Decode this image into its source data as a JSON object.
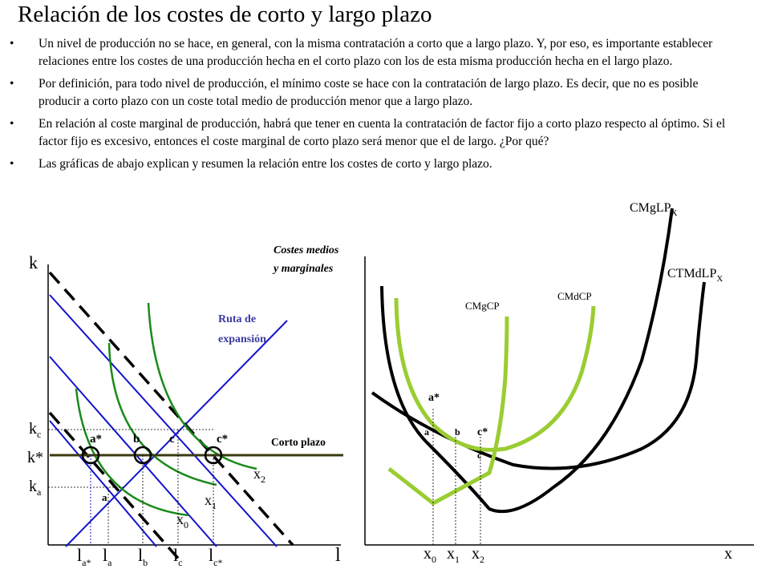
{
  "slide": {
    "title": "Relación de los costes de corto y largo plazo",
    "bullets": [
      "Un nivel de producción no se hace, en general, con la misma contratación a corto que a largo plazo. Y, por eso, es importante establecer relaciones entre los costes de una producción hecha en el corto plazo con los de esta misma producción hecha en el largo plazo.",
      "Por definición, para todo nivel de producción, el mínimo coste se hace con la contratación de largo plazo. Es decir, que no es posible producir a corto plazo con un coste total medio de producción menor que a largo plazo.",
      "En relación al coste marginal de producción, habrá que tener en cuenta la contratación de factor fijo a corto plazo respecto al óptimo. Si el factor fijo es excesivo, entonces el coste marginal de corto plazo será menor que el de largo. ¿Por qué?",
      "Las gráficas de abajo explican y resumen la relación entre los costes de corto y largo plazo."
    ]
  },
  "left_graph": {
    "y_axis_label": "k",
    "x_axis_label": "l",
    "ruta_label": [
      "Ruta de",
      "expansión"
    ],
    "corto_label": "Corto plazo",
    "k_ticks": {
      "kc": "k",
      "kc_sub": "c",
      "kstar": "k*",
      "ka": "k",
      "ka_sub": "a"
    },
    "l_ticks": [
      {
        "base": "l",
        "sub": "a*"
      },
      {
        "base": "l",
        "sub": "a"
      },
      {
        "base": "l",
        "sub": "b"
      },
      {
        "base": "l",
        "sub": "c"
      },
      {
        "base": "l",
        "sub": "c*"
      }
    ],
    "points": {
      "a_star": "a*",
      "b": "b",
      "c": "c",
      "c_star": "c*",
      "a": "a"
    },
    "isoquants": [
      {
        "base": "x",
        "sub": "2"
      },
      {
        "base": "x",
        "sub": "1"
      },
      {
        "base": "x",
        "sub": "0"
      }
    ]
  },
  "right_graph": {
    "y_axis_label": [
      "Costes medios",
      "y marginales"
    ],
    "x_axis_label": "x",
    "curves": {
      "cmg_lp": {
        "base": "CMgLP",
        "sub": "X"
      },
      "ctmd_lp": {
        "base": "CTMdLP",
        "sub": "X"
      },
      "cmd_cp": "CMdCP",
      "cmg_cp": "CMgCP"
    },
    "points": {
      "a_star": "a*",
      "a": "a",
      "b": "b",
      "c_star": "c*",
      "c": "c"
    },
    "x_ticks": [
      {
        "base": "x",
        "sub": "0"
      },
      {
        "base": "x",
        "sub": "1"
      },
      {
        "base": "x",
        "sub": "2"
      }
    ]
  },
  "colors": {
    "isocost_blue": "#1414cc",
    "isocost_dashed": "#000000",
    "isoquant_green": "#1a8a1a",
    "corto_plazo_line": "#3a3a10",
    "ruta_label": "#3a3aa0",
    "short_run_curves": "#9acd32",
    "long_run_curves": "#000000"
  }
}
